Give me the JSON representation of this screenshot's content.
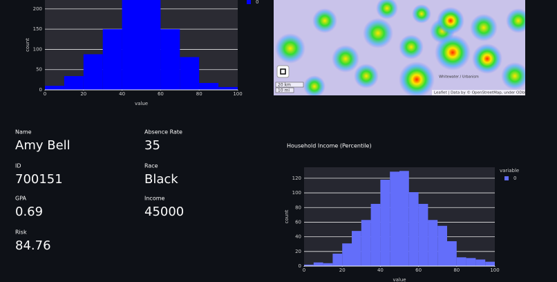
{
  "chart_data": [
    {
      "type": "histogram",
      "xlabel": "value",
      "ylabel": "count",
      "bins": [
        0,
        10,
        20,
        30,
        40,
        50,
        60,
        70,
        80,
        90,
        100
      ],
      "series": [
        {
          "name": "0",
          "color": "#0000ff",
          "values": [
            10,
            34,
            88,
            150,
            240,
            240,
            150,
            81,
            17,
            7
          ]
        }
      ],
      "xlim": [
        0,
        100
      ],
      "xticks": [
        0,
        20,
        40,
        60,
        80,
        100
      ],
      "ylim": [
        0,
        222
      ],
      "yticks": [
        0,
        50,
        100,
        150,
        200
      ],
      "grid": true
    },
    {
      "type": "histogram",
      "title": "Household Income (Percentile)",
      "xlabel": "value",
      "ylabel": "count",
      "legend_title": "variable",
      "bins": [
        0,
        5,
        10,
        15,
        20,
        25,
        30,
        35,
        40,
        45,
        50,
        55,
        60,
        65,
        70,
        75,
        80,
        85,
        90,
        95,
        100
      ],
      "series": [
        {
          "name": "0",
          "color": "#636efa",
          "values": [
            2,
            5,
            4,
            17,
            31,
            48,
            63,
            85,
            118,
            129,
            130,
            101,
            85,
            63,
            55,
            34,
            12,
            11,
            9,
            6
          ]
        }
      ],
      "xlim": [
        0,
        100
      ],
      "xticks": [
        0,
        20,
        40,
        60,
        80,
        100
      ],
      "ylim": [
        0,
        135
      ],
      "yticks": [
        0,
        20,
        40,
        60,
        80,
        100,
        120
      ],
      "grid": true
    }
  ],
  "map": {
    "scale_km": "20 km",
    "scale_mi": "10 mi",
    "place": "Whitewater / Urbanism",
    "attribution": "Leaflet | Data by © OpenStreetMap, under ODbL."
  },
  "metrics": [
    {
      "label": "Name",
      "value": "Amy Bell"
    },
    {
      "label": "Absence Rate",
      "value": 35
    },
    {
      "label": "ID",
      "value": 700151
    },
    {
      "label": "Race",
      "value": "Black"
    },
    {
      "label": "GPA",
      "value": 0.69
    },
    {
      "label": "Income",
      "value": 45000
    },
    {
      "label": "Risk",
      "value": 84.76
    }
  ]
}
